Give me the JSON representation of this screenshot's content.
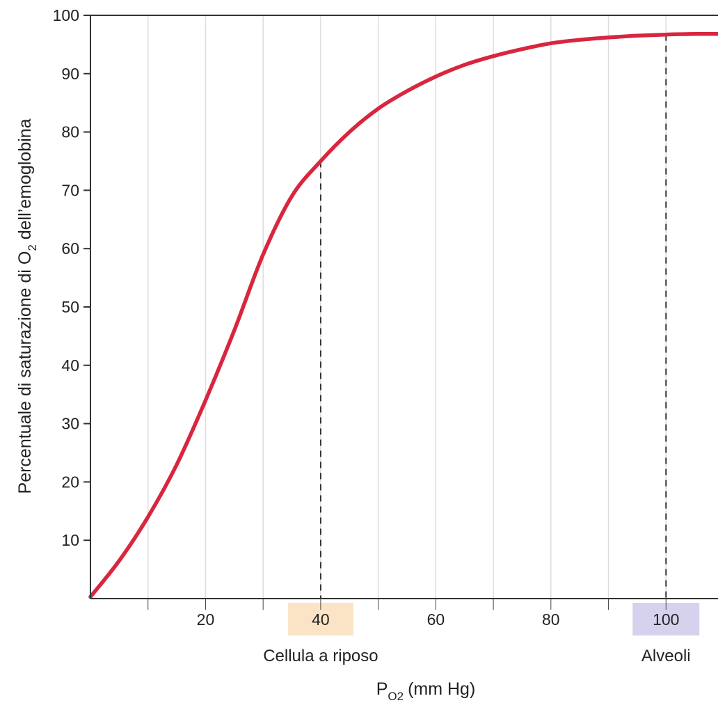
{
  "chart_data": {
    "type": "line",
    "xlabel": {
      "main": "P",
      "subscript": "O2",
      "unit": "(mm Hg)"
    },
    "ylabel": {
      "before": "Percentuale di saturazione di O",
      "subscript": "2",
      "after": " dell’emoglobina"
    },
    "xlim": [
      0,
      110
    ],
    "ylim": [
      0,
      100
    ],
    "x_ticks": [
      20,
      40,
      60,
      80,
      100
    ],
    "y_ticks": [
      10,
      20,
      30,
      40,
      50,
      60,
      70,
      80,
      90,
      100
    ],
    "grid": {
      "vertical": true,
      "horizontal": false
    },
    "series": [
      {
        "color": "#d8263f",
        "x": [
          0,
          5,
          10,
          15,
          20,
          25,
          30,
          35,
          40,
          45,
          50,
          55,
          60,
          65,
          70,
          75,
          80,
          85,
          90,
          95,
          100,
          105,
          110
        ],
        "y": [
          0.3,
          6.5,
          14,
          23,
          34,
          46,
          59,
          69,
          75,
          80,
          84,
          87,
          89.5,
          91.5,
          93,
          94.2,
          95.2,
          95.8,
          96.2,
          96.5,
          96.7,
          96.8,
          96.8
        ]
      }
    ],
    "markers": [
      {
        "x": 40,
        "y": 75,
        "tick_label": "40",
        "label": "Cellula a riposo",
        "highlight": "#fbe4c6"
      },
      {
        "x": 100,
        "y": 96.7,
        "tick_label": "100",
        "label": "Alveoli",
        "highlight": "#d6d2ee"
      }
    ]
  }
}
